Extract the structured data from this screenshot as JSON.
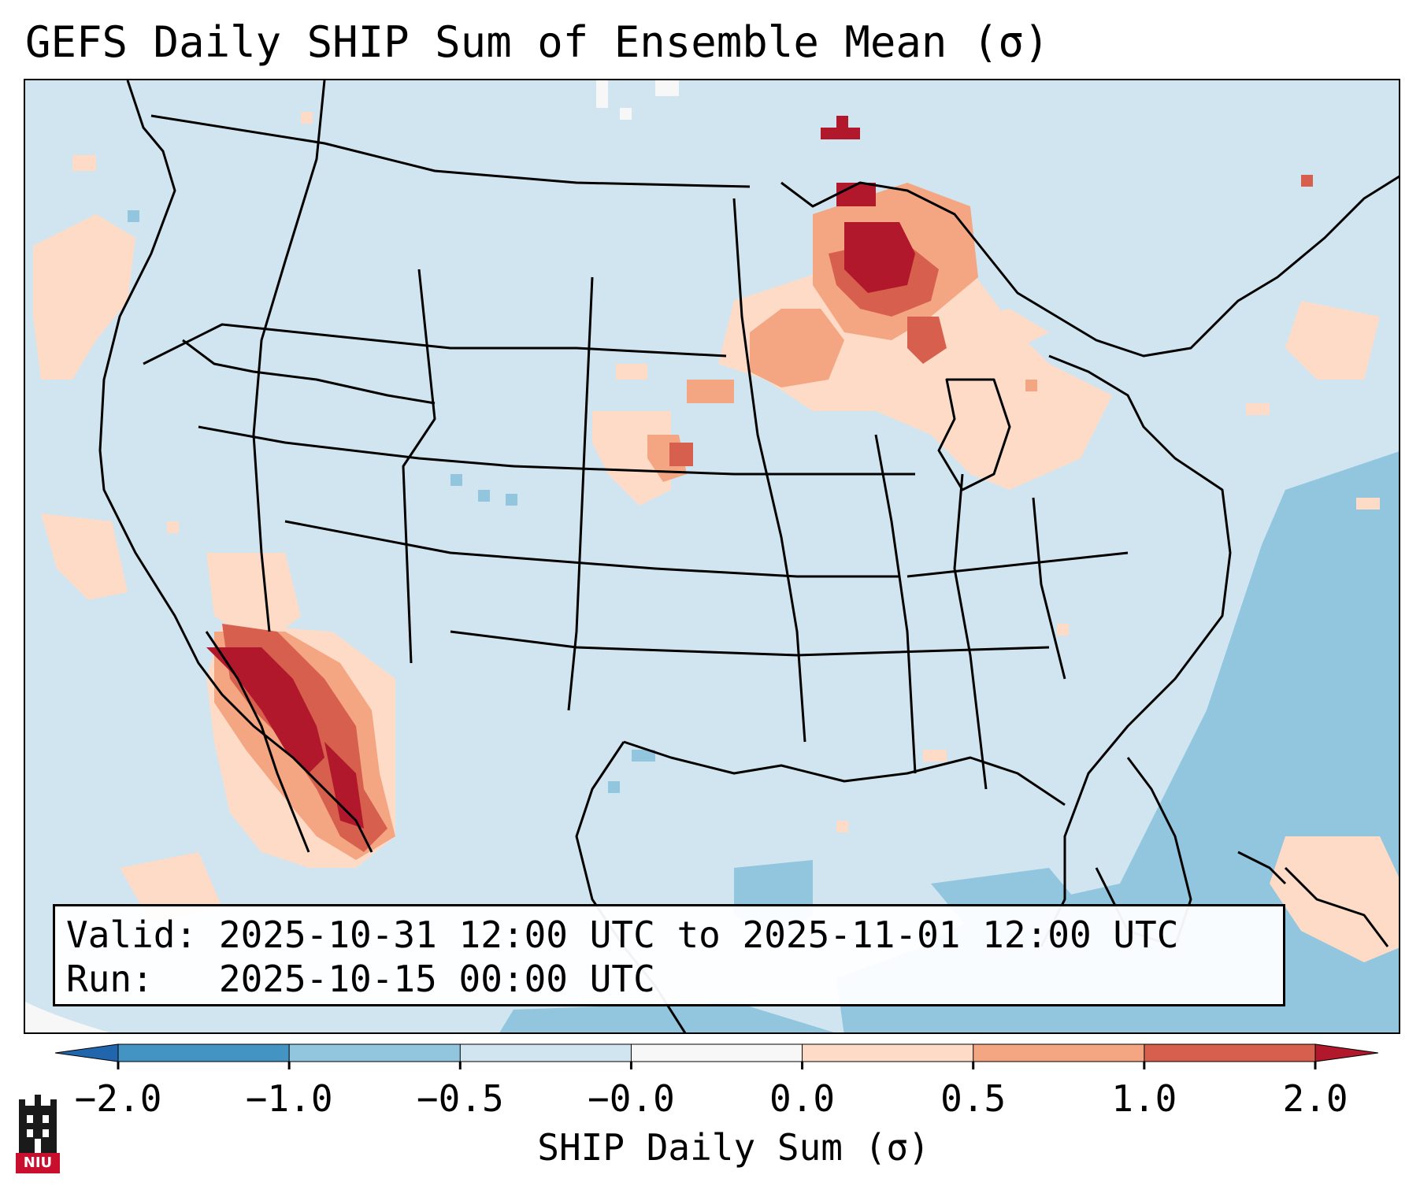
{
  "title": "GEFS Daily SHIP Sum of Ensemble Mean (σ)",
  "info": {
    "valid_label": "Valid:",
    "valid_value": "2025-10-31 12:00 UTC to 2025-11-01 12:00 UTC",
    "run_label": "Run:",
    "run_value": "2025-10-15 00:00 UTC"
  },
  "colorbar": {
    "label": "SHIP Daily Sum (σ)",
    "tick_labels": [
      "−2.0",
      "−1.0",
      "−0.5",
      "−0.0",
      "0.0",
      "0.5",
      "1.0",
      "2.0"
    ],
    "bins": [
      {
        "range": "<-2.0",
        "color": "#2166ac"
      },
      {
        "range": "-2.0 to -1.0",
        "color": "#4393c3"
      },
      {
        "range": "-1.0 to -0.5",
        "color": "#92c5de"
      },
      {
        "range": "-0.5 to -0.0",
        "color": "#d1e5f0"
      },
      {
        "range": "-0.0 to 0.0",
        "color": "#f7f7f7"
      },
      {
        "range": "0.0 to 0.5",
        "color": "#fddbc7"
      },
      {
        "range": "0.5 to 1.0",
        "color": "#f4a582"
      },
      {
        "range": "1.0 to 2.0",
        "color": "#d6604d"
      },
      {
        "range": ">2.0",
        "color": "#b2182b"
      }
    ]
  },
  "map": {
    "region": "Contiguous United States",
    "background_color": "#d1e5f0",
    "anomaly_regions": [
      {
        "name": "Upper Michigan / Lake Superior",
        "category": "1.0 to 2.0 and >2.0"
      },
      {
        "name": "Southern California / Baja / Gulf of California",
        "category": "1.0 to 2.0 and >2.0"
      },
      {
        "name": "Central Nebraska",
        "category": "0.5 to 1.0"
      },
      {
        "name": "Western Atlantic / Gulf of Mexico",
        "category": "-1.0 to -0.5"
      }
    ]
  },
  "logo": {
    "text": "NIU"
  }
}
